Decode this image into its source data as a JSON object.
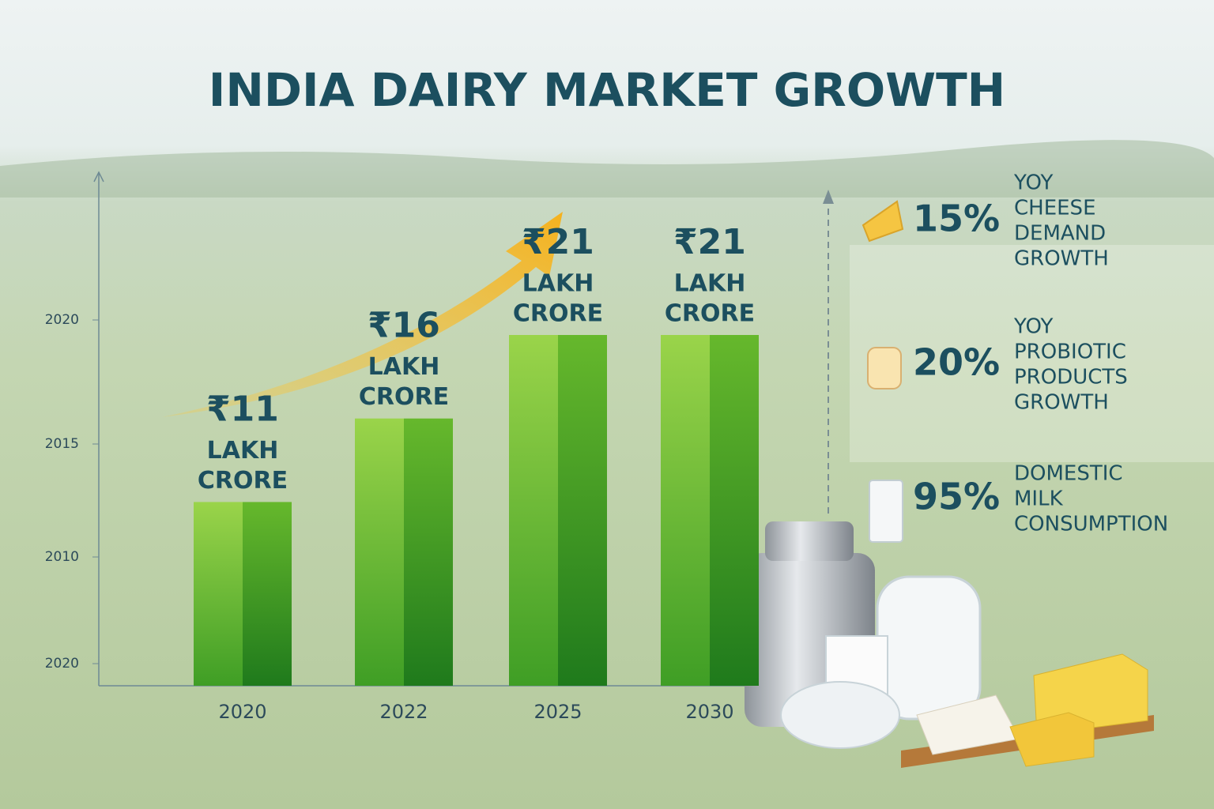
{
  "chart_data": {
    "type": "bar",
    "title": "INDIA DAIRY MARKET GROWTH",
    "categories": [
      "2020",
      "2022",
      "2025",
      "2030"
    ],
    "values": [
      11,
      16,
      21,
      21
    ],
    "value_labels": [
      "₹11",
      "₹16",
      "₹21",
      "₹21"
    ],
    "unit_lines": [
      "LAKH",
      "CRORE"
    ],
    "y_axis_labels": [
      "2020",
      "2015",
      "2010",
      "2020"
    ],
    "color": "#4caf22"
  },
  "stats": [
    {
      "figure": "15%",
      "lines": [
        "YOY",
        "CHEESE",
        "DEMAND",
        "GROWTH"
      ]
    },
    {
      "figure": "20%",
      "lines": [
        "YOY",
        "PROBIOTIC",
        "PRODUCTS",
        "GROWTH"
      ]
    },
    {
      "figure": "95%",
      "lines": [
        "DOMESTIC",
        "MILK",
        "CONSUMPTION"
      ]
    }
  ]
}
